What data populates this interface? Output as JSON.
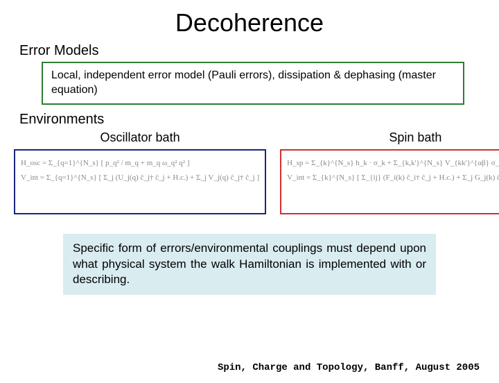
{
  "title": "Decoherence",
  "section1": {
    "label": "Error Models"
  },
  "greenbox": {
    "text": "Local, independent error model (Pauli errors), dissipation & dephasing (master equation)",
    "border_color": "#2e7d32"
  },
  "section2": {
    "label": "Environments"
  },
  "oscillator": {
    "heading": "Oscillator bath",
    "border_color": "#1a237e",
    "eq1": "H_osc = Σ_{q=1}^{N_s} [ p_q² / m_q  +  m_q ω_q² q² ]",
    "eq2": "V_int = Σ_{q=1}^{N_s} [ Σ_j (U_j(q) ĉ_j† ĉ_j + H.c.) + Σ_j V_j(q) ĉ_j† ĉ_j ]"
  },
  "spin": {
    "heading": "Spin bath",
    "border_color": "#d32f2f",
    "eq1": "H_sp = Σ_{k}^{N_s} h_k · σ_k  +  Σ_{k,k'}^{N_s} V_{kk'}^{αβ} σ_k^α σ_{k'}^β",
    "eq2": "V_int = Σ_{k}^{N_s} [ Σ_{ij} (F_i(k) ĉ_i† ĉ_j + H.c.) + Σ_j G_j(k) ĉ_j† ĉ_j ] · σ_k"
  },
  "note": {
    "text": "Specific form of errors/environmental couplings must depend upon what physical system the walk Hamiltonian is implemented with or describing.",
    "background_color": "#d9ecef"
  },
  "footer": {
    "text": "Spin, Charge and Topology, Banff, August 2005"
  }
}
